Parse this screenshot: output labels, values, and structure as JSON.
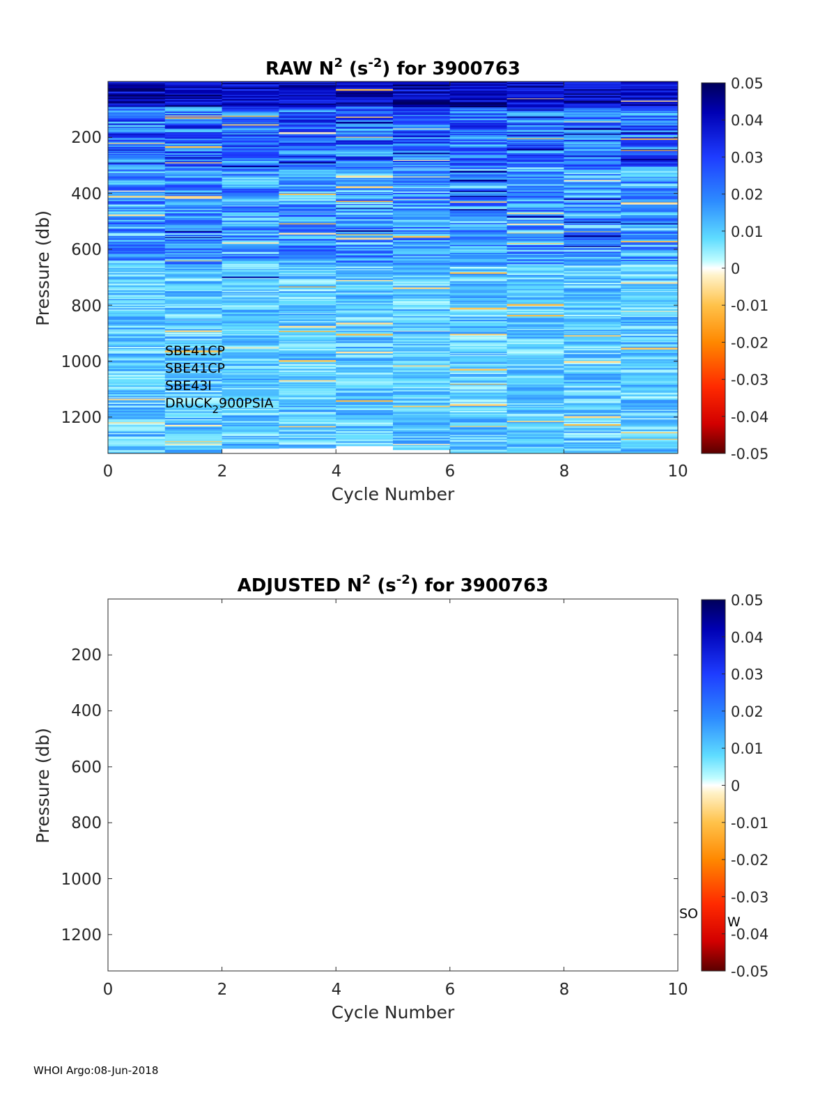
{
  "footer": "WHOI Argo:08-Jun-2018",
  "colorbar": {
    "ticks": [
      "0.05",
      "0.04",
      "0.03",
      "0.02",
      "0.01",
      "0",
      "-0.01",
      "-0.02",
      "-0.03",
      "-0.04",
      "-0.05"
    ],
    "clim": [
      -0.05,
      0.05
    ],
    "colormap": "jet-like diverging: dark red to yellow (negative), white at 0, cyan to dark blue (positive)"
  },
  "chart_data": [
    {
      "type": "heatmap",
      "title_main": "RAW N",
      "title_sup": "2",
      "title_unit_open": " (s",
      "title_unit_sup": "-2",
      "title_tail": ") for 3900763",
      "xlabel": "Cycle Number",
      "ylabel": "Pressure (db)",
      "xlim": [
        0,
        10
      ],
      "ylim": [
        0,
        1330
      ],
      "y_reversed": true,
      "xticks": [
        "0",
        "2",
        "4",
        "6",
        "8",
        "10"
      ],
      "yticks": [
        "200",
        "400",
        "600",
        "800",
        "1000",
        "1200"
      ],
      "cycles": [
        1,
        2,
        3,
        4,
        5,
        6,
        7,
        8,
        9,
        10
      ],
      "cycle_bottom_pressure": [
        1330,
        1330,
        1310,
        1310,
        1300,
        1310,
        1330,
        1330,
        1330,
        1330
      ],
      "values_summary": "N^2 mostly 0.005 to 0.05 s^-2; strongest (0.03 to 0.05) above 100 db; weak near 0 below 800 db",
      "annotations": [
        "SBE41CP",
        "SBE41CP",
        "SBE43I",
        "DRUCK",
        "2",
        "900PSIA"
      ]
    },
    {
      "type": "heatmap",
      "title_main": "ADJUSTED N",
      "title_sup": "2",
      "title_unit_open": " (s",
      "title_unit_sup": "-2",
      "title_tail": ") for 3900763",
      "xlabel": "Cycle Number",
      "ylabel": "Pressure (db)",
      "xlim": [
        0,
        10
      ],
      "ylim": [
        0,
        1330
      ],
      "y_reversed": true,
      "xticks": [
        "0",
        "2",
        "4",
        "6",
        "8",
        "10"
      ],
      "yticks": [
        "200",
        "400",
        "600",
        "800",
        "1000",
        "1200"
      ],
      "values_summary": "no data plotted",
      "annotations": [
        "SO",
        "W"
      ]
    }
  ]
}
